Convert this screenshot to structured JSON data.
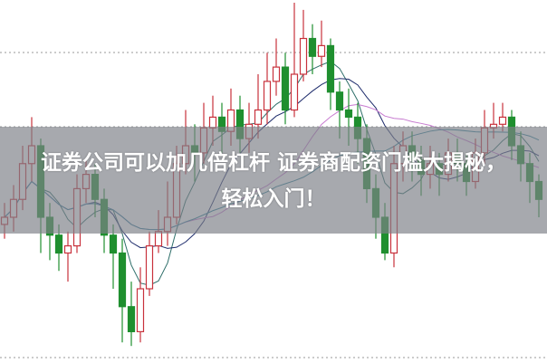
{
  "headline": {
    "line1": "证券公司可以加几倍杠杆 证券商配资门槛大揭秘，",
    "line2": "轻松入门！"
  },
  "colors": {
    "up": "#c8323c",
    "down": "#1f8f2f",
    "grid": "#9a9a9a",
    "banner": "#7d8087",
    "ma5": "#2f6f6a",
    "ma10": "#1d2b6b",
    "ma20": "#c77bd0",
    "ma30": "#2c7f9a"
  },
  "chart_data": {
    "type": "candlestick",
    "title": "",
    "xlabel": "",
    "ylabel": "",
    "ylim": [
      0,
      100
    ],
    "grid": "dotted horizontal",
    "moving_averages": [
      5,
      10,
      20,
      30
    ],
    "ohlc": [
      [
        38,
        44,
        34,
        40
      ],
      [
        40,
        49,
        36,
        45
      ],
      [
        45,
        60,
        42,
        55
      ],
      [
        55,
        68,
        50,
        60
      ],
      [
        60,
        62,
        30,
        40
      ],
      [
        40,
        44,
        28,
        35
      ],
      [
        35,
        38,
        25,
        30
      ],
      [
        30,
        36,
        22,
        32
      ],
      [
        32,
        52,
        30,
        48
      ],
      [
        48,
        56,
        44,
        52
      ],
      [
        52,
        55,
        40,
        45
      ],
      [
        45,
        48,
        30,
        35
      ],
      [
        35,
        38,
        20,
        30
      ],
      [
        30,
        34,
        5,
        15
      ],
      [
        15,
        22,
        4,
        8
      ],
      [
        8,
        26,
        5,
        20
      ],
      [
        20,
        36,
        18,
        32
      ],
      [
        32,
        42,
        30,
        36
      ],
      [
        36,
        50,
        32,
        40
      ],
      [
        40,
        60,
        38,
        55
      ],
      [
        55,
        70,
        52,
        60
      ],
      [
        60,
        66,
        50,
        58
      ],
      [
        58,
        72,
        55,
        65
      ],
      [
        65,
        74,
        60,
        68
      ],
      [
        68,
        72,
        58,
        64
      ],
      [
        64,
        76,
        60,
        70
      ],
      [
        70,
        74,
        58,
        62
      ],
      [
        62,
        72,
        58,
        66
      ],
      [
        66,
        80,
        62,
        70
      ],
      [
        70,
        86,
        66,
        78
      ],
      [
        78,
        90,
        74,
        82
      ],
      [
        82,
        86,
        66,
        70
      ],
      [
        70,
        100,
        68,
        80
      ],
      [
        80,
        98,
        78,
        90
      ],
      [
        90,
        94,
        80,
        85
      ],
      [
        85,
        95,
        82,
        88
      ],
      [
        88,
        90,
        70,
        75
      ],
      [
        75,
        78,
        62,
        70
      ],
      [
        70,
        76,
        60,
        68
      ],
      [
        68,
        72,
        55,
        62
      ],
      [
        62,
        66,
        44,
        48
      ],
      [
        48,
        52,
        34,
        40
      ],
      [
        40,
        44,
        28,
        30
      ],
      [
        30,
        60,
        26,
        55
      ],
      [
        55,
        64,
        50,
        60
      ],
      [
        60,
        64,
        50,
        56
      ],
      [
        56,
        60,
        46,
        52
      ],
      [
        52,
        60,
        48,
        55
      ],
      [
        55,
        58,
        46,
        52
      ],
      [
        52,
        62,
        50,
        58
      ],
      [
        58,
        62,
        50,
        55
      ],
      [
        55,
        58,
        46,
        50
      ],
      [
        50,
        62,
        48,
        58
      ],
      [
        58,
        70,
        55,
        65
      ],
      [
        65,
        72,
        62,
        66
      ],
      [
        66,
        72,
        64,
        68
      ],
      [
        68,
        70,
        56,
        60
      ],
      [
        60,
        64,
        50,
        55
      ],
      [
        55,
        58,
        44,
        50
      ],
      [
        50,
        52,
        40,
        45
      ]
    ]
  }
}
